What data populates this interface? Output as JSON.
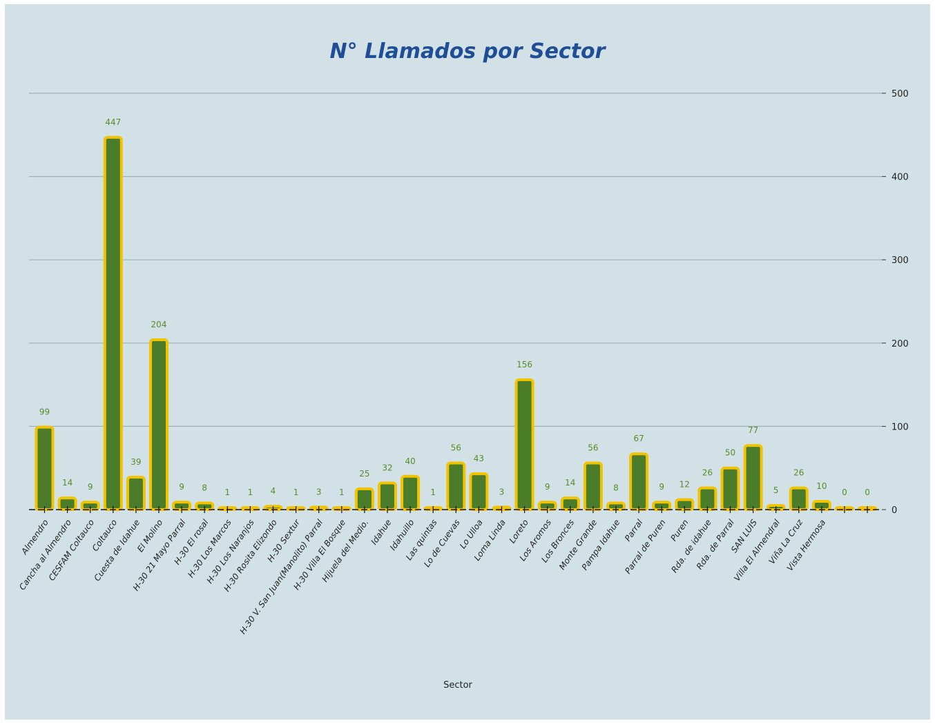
{
  "chart_data": {
    "type": "bar",
    "title": "N° Llamados por Sector",
    "xlabel": "Sector",
    "ylabel": "",
    "ylim": [
      0,
      500
    ],
    "yticks": [
      "0",
      "100",
      "200",
      "300",
      "400",
      "500"
    ],
    "yaxis_side": "right",
    "grid": true,
    "categories": [
      "Almendro",
      "Cancha al Almendro",
      "CESFAM Coltauco",
      "Coltauco",
      "Cuesta de Idahue",
      "El Molino",
      "H-30 21 Mayo Parral",
      "H-30 El rosal",
      "H-30 Los Marcos",
      "H-30 Los Naranjos",
      "H-30 Rosita Elizondo",
      "H-30 Sextur",
      "H-30 V. San Juan(Manolito) Parral",
      "H-30 Villa El Bosque",
      "Hijuela del Medio.",
      "Idahue",
      "Idahuillo",
      "Las quintas",
      "Lo de Cuevas",
      "Lo Ulloa",
      "Loma Linda",
      "Loreto",
      "Los Aromos",
      "Los Bronces",
      "Monte Grande",
      "Pampa Idahue",
      "Parral",
      "Parral de Puren",
      "Puren",
      "Rda. de idahue",
      "Rda. de Parral",
      "SAN LUIS",
      "Villa El Almendral",
      "Viña La Cruz",
      "Vista Hermosa",
      "",
      ""
    ],
    "values": [
      99,
      14,
      9,
      447,
      39,
      204,
      9,
      8,
      1,
      1,
      4,
      1,
      3,
      1,
      25,
      32,
      40,
      1,
      56,
      43,
      3,
      156,
      9,
      14,
      56,
      8,
      67,
      9,
      12,
      26,
      50,
      77,
      5,
      26,
      10,
      0,
      0
    ],
    "value_labels": [
      "99",
      "14",
      "9",
      "447",
      "39",
      "204",
      "9",
      "8",
      "1",
      "1",
      "4",
      "1",
      "3",
      "1",
      "25",
      "32",
      "40",
      "1",
      "56",
      "43",
      "3",
      "156",
      "9",
      "14",
      "56",
      "8",
      "67",
      "9",
      "12",
      "26",
      "50",
      "77",
      "5",
      "26",
      "10",
      "0",
      "0"
    ],
    "colors": {
      "bar_fill": "#4a7c2a",
      "bar_border": "#f2c300",
      "grid": "#9db3b3",
      "title": "#1f4e96",
      "data_label": "#5a8a2e",
      "background": "#d2e1e5"
    }
  }
}
